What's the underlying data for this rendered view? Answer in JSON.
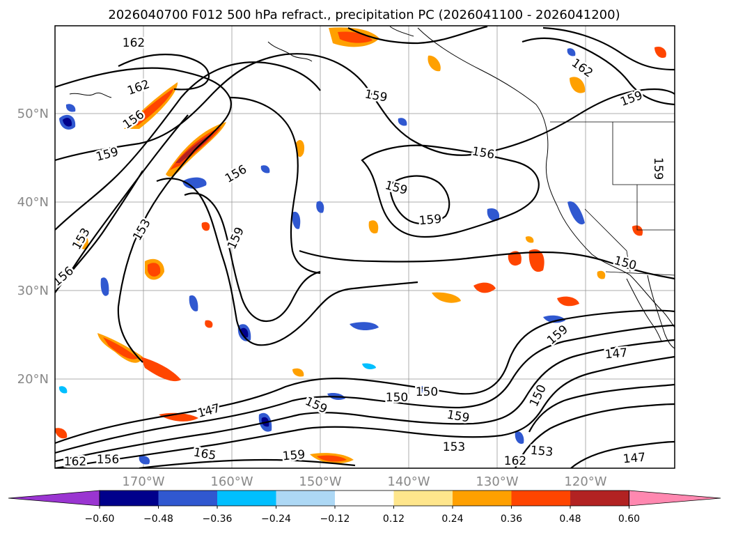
{
  "title": "2026040700 F012 500 hPa refract., precipitation PC (2026041100 - 2026041200)",
  "latitude_labels": [
    "50°N",
    "40°N",
    "30°N",
    "20°N"
  ],
  "longitude_labels": [
    "170°W",
    "160°W",
    "150°W",
    "140°W",
    "130°W",
    "120°W"
  ],
  "colorbar": {
    "ticks": [
      "−0.60",
      "−0.48",
      "−0.36",
      "−0.24",
      "−0.12",
      "0.12",
      "0.24",
      "0.36",
      "0.48",
      "0.60"
    ],
    "colors": [
      "#9a35d1",
      "#00008b",
      "#3058d0",
      "#00bfff",
      "#add8f5",
      "#ffffff",
      "#ffe68c",
      "#ffa000",
      "#ff4500",
      "#b22222",
      "#ff88b0"
    ]
  },
  "contour_labels": [
    {
      "text": "162"
    },
    {
      "text": "162"
    },
    {
      "text": "162"
    },
    {
      "text": "156"
    },
    {
      "text": "159"
    },
    {
      "text": "156"
    },
    {
      "text": "159"
    },
    {
      "text": "156"
    },
    {
      "text": "159"
    },
    {
      "text": "159"
    },
    {
      "text": "159"
    },
    {
      "text": "159"
    },
    {
      "text": "153"
    },
    {
      "text": "153"
    },
    {
      "text": "156"
    },
    {
      "text": "150"
    },
    {
      "text": "159"
    },
    {
      "text": "147"
    },
    {
      "text": "150"
    },
    {
      "text": "150"
    },
    {
      "text": "159"
    },
    {
      "text": "159"
    },
    {
      "text": "147"
    },
    {
      "text": "165"
    },
    {
      "text": "159"
    },
    {
      "text": "159"
    },
    {
      "text": "153"
    },
    {
      "text": "162"
    },
    {
      "text": "156"
    },
    {
      "text": "162"
    },
    {
      "text": "153"
    },
    {
      "text": "147"
    },
    {
      "text": "150"
    }
  ]
}
